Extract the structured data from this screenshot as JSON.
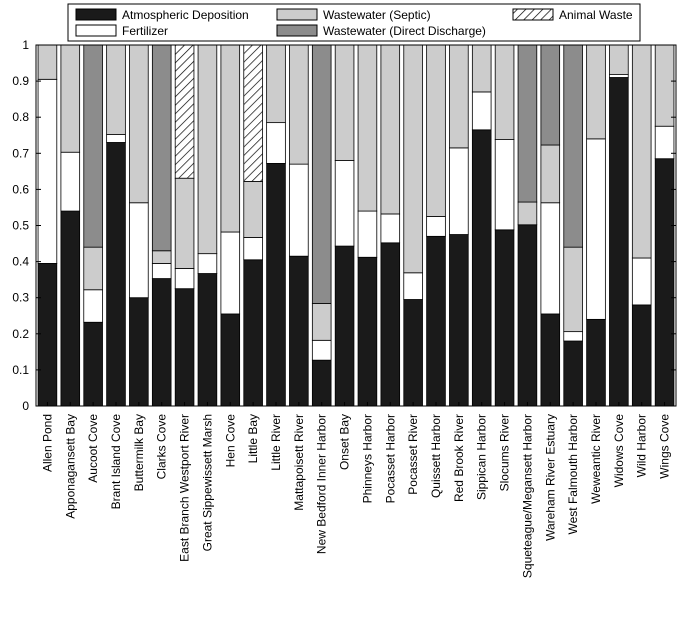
{
  "chart_data": {
    "type": "bar",
    "stacked": true,
    "title": "",
    "xlabel": "",
    "ylabel": "",
    "ylim": [
      0,
      1
    ],
    "yticks": [
      "0",
      "0.1",
      "0.2",
      "0.3",
      "0.4",
      "0.5",
      "0.6",
      "0.7",
      "0.8",
      "0.9",
      "1"
    ],
    "legend_position": "top",
    "categories": [
      "Allen Pond",
      "Apponagansett Bay",
      "Aucoot Cove",
      "Brant Island Cove",
      "Buttermilk Bay",
      "Clarks Cove",
      "East Branch Westport River",
      "Great Sippewissett Marsh",
      "Hen Cove",
      "Little Bay",
      "Little River",
      "Mattapoisett River",
      "New Bedford Inner Harbor",
      "Onset Bay",
      "Phinneys Harbor",
      "Pocasset Harbor",
      "Pocasset River",
      "Quissett Harbor",
      "Red Brook River",
      "Sippican Harbor",
      "Slocums River",
      "Squeteague/Megansett Harbor",
      "Wareham River Estuary",
      "West Falmouth Harbor",
      "Weweantic River",
      "Widows Cove",
      "Wild Harbor",
      "Wings Cove"
    ],
    "series": [
      {
        "name": "Atmospheric Deposition",
        "color": "#1a1a1a",
        "pattern": "solid",
        "values": [
          0.395,
          0.54,
          0.232,
          0.73,
          0.3,
          0.353,
          0.325,
          0.367,
          0.255,
          0.405,
          0.672,
          0.415,
          0.127,
          0.443,
          0.412,
          0.452,
          0.295,
          0.47,
          0.475,
          0.765,
          0.488,
          0.502,
          0.255,
          0.18,
          0.24,
          0.91,
          0.28,
          0.685
        ]
      },
      {
        "name": "Fertilizer",
        "color": "#ffffff",
        "pattern": "solid",
        "values": [
          0.51,
          0.163,
          0.09,
          0.022,
          0.263,
          0.042,
          0.056,
          0.055,
          0.227,
          0.062,
          0.113,
          0.255,
          0.055,
          0.237,
          0.128,
          0.08,
          0.074,
          0.055,
          0.24,
          0.105,
          0.25,
          0.0,
          0.308,
          0.026,
          0.5,
          0.008,
          0.13,
          0.09
        ]
      },
      {
        "name": "Wastewater (Septic)",
        "color": "#cccccc",
        "pattern": "solid",
        "values": [
          0.095,
          0.297,
          0.118,
          0.248,
          0.437,
          0.035,
          0.25,
          0.578,
          0.518,
          0.155,
          0.215,
          0.33,
          0.102,
          0.32,
          0.46,
          0.468,
          0.631,
          0.475,
          0.285,
          0.13,
          0.262,
          0.063,
          0.16,
          0.234,
          0.26,
          0.082,
          0.59,
          0.225
        ]
      },
      {
        "name": "Wastewater (Direct Discharge)",
        "color": "#8c8c8c",
        "pattern": "solid",
        "values": [
          0.0,
          0.0,
          0.56,
          0.0,
          0.0,
          0.57,
          0.0,
          0.0,
          0.0,
          0.0,
          0.0,
          0.0,
          0.716,
          0.0,
          0.0,
          0.0,
          0.0,
          0.0,
          0.0,
          0.0,
          0.0,
          0.435,
          0.277,
          0.56,
          0.0,
          0.0,
          0.0,
          0.0
        ]
      },
      {
        "name": "Animal Waste",
        "color": "#ffffff",
        "pattern": "hatch",
        "values": [
          0.0,
          0.0,
          0.0,
          0.0,
          0.0,
          0.0,
          0.369,
          0.0,
          0.0,
          0.378,
          0.0,
          0.0,
          0.0,
          0.0,
          0.0,
          0.0,
          0.0,
          0.0,
          0.0,
          0.0,
          0.0,
          0.0,
          0.0,
          0.0,
          0.0,
          0.0,
          0.0,
          0.0
        ]
      }
    ],
    "legend_order": [
      "Atmospheric Deposition",
      "Wastewater (Septic)",
      "Animal Waste",
      "Fertilizer",
      "Wastewater (Direct Discharge)"
    ]
  }
}
